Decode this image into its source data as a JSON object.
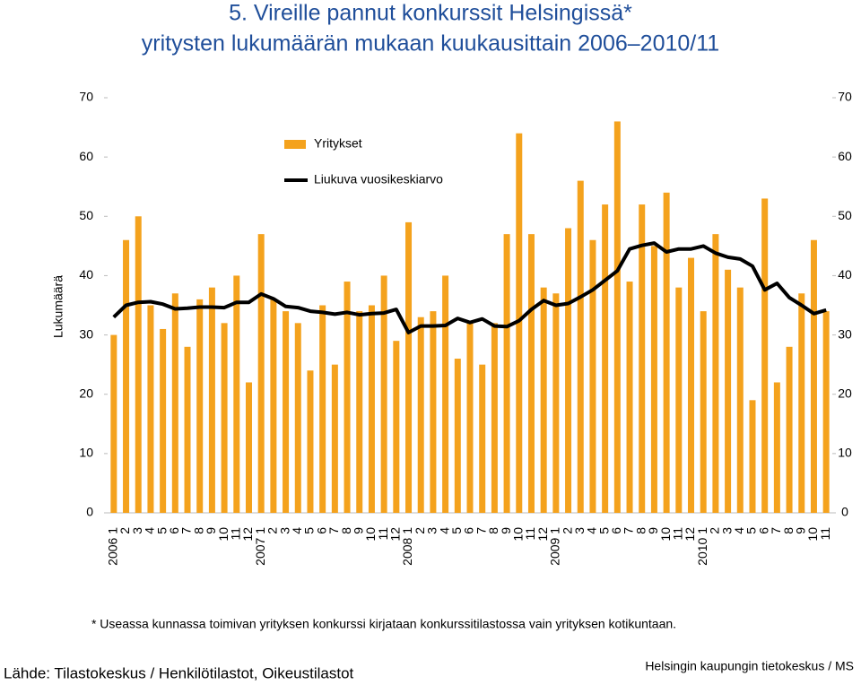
{
  "chart_data": {
    "type": "bar-line",
    "title": "5. Vireille pannut konkurssit Helsingissä*",
    "subtitle": "yritysten lukumäärän mukaan kuukausittain 2006–2010/11",
    "y_label": "Lukumäärä",
    "categories": [
      "2006 1",
      "2",
      "3",
      "4",
      "5",
      "6",
      "7",
      "8",
      "9",
      "10",
      "11",
      "12",
      "2007 1",
      "2",
      "3",
      "4",
      "5",
      "6",
      "7",
      "8",
      "9",
      "10",
      "11",
      "12",
      "2008 1",
      "2",
      "3",
      "4",
      "5",
      "6",
      "7",
      "8",
      "9",
      "10",
      "11",
      "12",
      "2009 1",
      "2",
      "3",
      "4",
      "5",
      "6",
      "7",
      "8",
      "9",
      "10",
      "11",
      "12",
      "2010 1",
      "2",
      "3",
      "4",
      "5",
      "6",
      "7",
      "8",
      "9",
      "10",
      "11"
    ],
    "series": [
      {
        "name": "Yritykset",
        "kind": "bar",
        "color": "#f4a21d",
        "values": [
          30,
          46,
          50,
          35,
          31,
          37,
          28,
          36,
          38,
          32,
          40,
          22,
          47,
          36,
          34,
          32,
          24,
          35,
          25,
          39,
          34,
          35,
          40,
          29,
          49,
          33,
          34,
          40,
          26,
          32,
          25,
          32,
          47,
          64,
          47,
          38,
          37,
          48,
          56,
          46,
          52,
          66,
          39,
          52,
          45,
          54,
          38,
          43,
          34,
          47,
          41,
          38,
          19,
          53,
          22,
          28,
          37,
          46,
          34
        ]
      },
      {
        "name": "Liukuva vuosikeskiarvo",
        "kind": "line",
        "color": "#000000",
        "values": [
          33,
          35,
          35.5,
          35.6,
          35.2,
          34.4,
          34.5,
          34.7,
          34.7,
          34.6,
          35.5,
          35.5,
          36.9,
          36.1,
          34.8,
          34.6,
          34,
          33.8,
          33.5,
          33.8,
          33.4,
          33.6,
          33.7,
          34.3,
          30.4,
          31.5,
          31.5,
          31.6,
          32.8,
          32.1,
          32.7,
          31.5,
          31.4,
          32.4,
          34.3,
          35.8,
          35,
          35.3,
          36.4,
          37.6,
          39.2,
          40.8,
          44.5,
          45.1,
          45.5,
          44,
          44.5,
          44.5,
          45,
          43.8,
          43.1,
          42.8,
          41.6,
          37.6,
          38.7,
          36.3,
          35,
          33.6,
          34.2
        ]
      }
    ],
    "ylim": [
      0,
      70
    ],
    "yticks": [
      0,
      10,
      20,
      30,
      40,
      50,
      60,
      70
    ],
    "y2lim": [
      0,
      70
    ],
    "y2ticks": [
      0,
      10,
      20,
      30,
      40,
      50,
      60,
      70
    ],
    "footnote": "* Useassa kunnassa toimivan yrityksen konkurssi kirjataan konkurssitilastossa vain yrityksen kotikuntaan.",
    "source": "Lähde: Tilastokeskus / Henkilötilastot, Oikeustilastot",
    "credit": "Helsingin kaupungin tietokeskus / MS"
  }
}
